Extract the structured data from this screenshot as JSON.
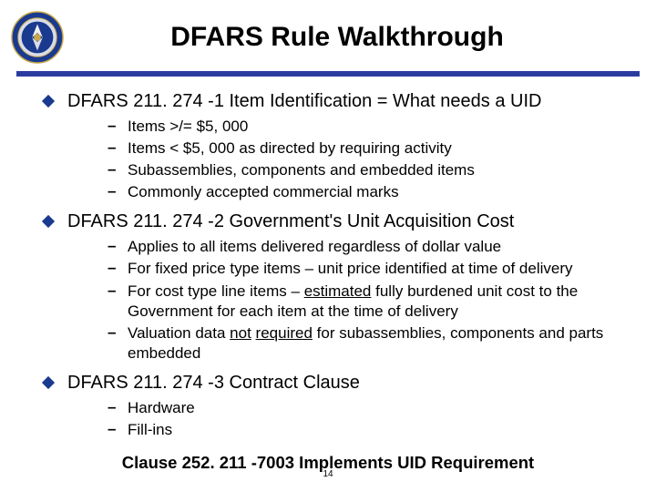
{
  "rule_color": "#2b3ca0",
  "title": "DFARS Rule Walkthrough",
  "sections": [
    {
      "heading": "DFARS 211. 274 -1  Item Identification = What needs a UID",
      "items": [
        {
          "plain": "Items >/= $5, 000"
        },
        {
          "plain": "Items < $5, 000 as directed by requiring activity"
        },
        {
          "plain": "Subassemblies, components and embedded items"
        },
        {
          "plain": "Commonly accepted commercial marks"
        }
      ]
    },
    {
      "heading": "DFARS 211. 274 -2  Government's Unit Acquisition Cost",
      "items": [
        {
          "plain": "Applies to all items delivered regardless of dollar value"
        },
        {
          "plain": "For fixed price type items – unit price identified at time of delivery"
        },
        {
          "pre": "For cost type line items – ",
          "u": "estimated",
          "post": " fully burdened unit cost  to the Government for each item at the time of delivery"
        },
        {
          "pre": "Valuation data ",
          "u": "not",
          "mid": " ",
          "u2": "required",
          "post": " for subassemblies, components and parts embedded"
        }
      ]
    },
    {
      "heading": "DFARS 211. 274 -3 Contract Clause",
      "items": [
        {
          "plain": "Hardware"
        },
        {
          "plain": "Fill-ins"
        }
      ]
    }
  ],
  "footer": "Clause 252. 211 -7003 Implements UID Requirement",
  "page_number": "14"
}
